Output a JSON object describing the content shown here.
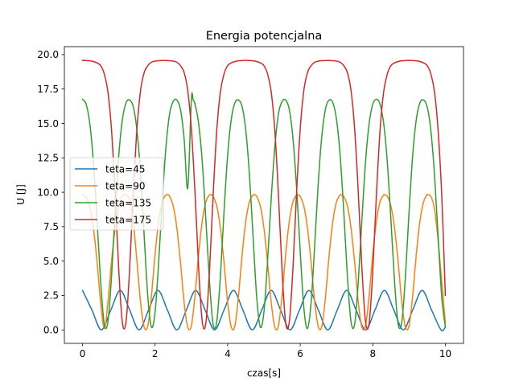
{
  "chart_data": {
    "type": "line",
    "title": "Energia potencjalna",
    "xlabel": "czas[s]",
    "ylabel": "U [J]",
    "xlim": [
      -0.5,
      10.5
    ],
    "ylim": [
      -0.98,
      20.58
    ],
    "xticks": [
      0,
      2,
      4,
      6,
      8,
      10
    ],
    "xtick_labels": [
      "0",
      "2",
      "4",
      "6",
      "8",
      "10"
    ],
    "yticks": [
      0.0,
      2.5,
      5.0,
      7.5,
      10.0,
      12.5,
      15.0,
      17.5,
      20.0
    ],
    "ytick_labels": [
      "0.0",
      "2.5",
      "5.0",
      "7.5",
      "10.0",
      "12.5",
      "15.0",
      "17.5",
      "20.0"
    ],
    "grid": false,
    "legend_position": "center-left",
    "x_range": [
      0,
      10
    ],
    "series": [
      {
        "name": "teta=45",
        "color": "#1f77b4",
        "x": [
          0.0,
          0.26,
          0.52,
          0.78,
          1.04,
          1.3,
          1.56,
          1.82,
          2.08,
          2.34,
          2.6,
          2.86,
          3.12,
          3.38,
          3.64,
          3.9,
          4.16,
          4.42,
          4.68,
          4.94,
          5.2,
          5.46,
          5.72,
          5.98,
          6.24,
          6.5,
          6.76,
          7.02,
          7.28,
          7.54,
          7.8,
          8.06,
          8.32,
          8.58,
          8.84,
          9.1,
          9.36,
          9.62,
          9.88,
          10.0
        ],
        "values": [
          2.87,
          1.44,
          0.0,
          1.44,
          2.87,
          1.44,
          0.0,
          1.44,
          2.87,
          1.44,
          0.0,
          1.44,
          2.87,
          1.44,
          0.0,
          1.44,
          2.87,
          1.44,
          0.0,
          1.44,
          2.87,
          1.44,
          0.0,
          1.44,
          2.87,
          1.44,
          0.0,
          1.44,
          2.87,
          1.44,
          0.0,
          1.44,
          2.87,
          1.44,
          0.0,
          1.44,
          2.87,
          1.44,
          0.0,
          0.2
        ]
      },
      {
        "name": "teta=90",
        "color": "#ff7f0e",
        "x": [
          0.0,
          0.1,
          0.2,
          0.3,
          0.4,
          0.5,
          0.6,
          0.7,
          0.8,
          0.9,
          1.0,
          1.1,
          1.2,
          1.3,
          1.4,
          1.5,
          1.6,
          1.7,
          1.8,
          1.9,
          2.0,
          2.1,
          2.2,
          2.3,
          2.36,
          2.4,
          2.5,
          2.6,
          2.7,
          2.8,
          2.9,
          3.0,
          3.1,
          3.2,
          3.3,
          3.4,
          3.5,
          3.55,
          3.6,
          3.7,
          3.8,
          3.9,
          4.0,
          4.1,
          4.2,
          4.3,
          4.4,
          4.5,
          4.6,
          4.7,
          4.74,
          4.8,
          4.9,
          5.0,
          5.1,
          5.2,
          5.3,
          5.4,
          5.5,
          5.6,
          5.7,
          5.8,
          5.9,
          5.93,
          6.0,
          6.1,
          6.2,
          6.3,
          6.4,
          6.5,
          6.6,
          6.7,
          6.8,
          6.9,
          7.0,
          7.1,
          7.12,
          7.2,
          7.3,
          7.4,
          7.5,
          7.6,
          7.7,
          7.8,
          7.9,
          8.0,
          8.1,
          8.2,
          8.3,
          8.31,
          8.4,
          8.5,
          8.6,
          8.7,
          8.8,
          8.9,
          9.0,
          9.1,
          9.2,
          9.3,
          9.4,
          9.49,
          9.5,
          9.6,
          9.7,
          9.8,
          9.9,
          10.0
        ],
        "values": [
          9.81,
          9.62,
          8.9,
          7.4,
          5.0,
          2.0,
          0.1,
          2.0,
          5.0,
          7.4,
          8.9,
          9.7,
          9.81,
          9.4,
          7.8,
          5.0,
          2.0,
          0.2,
          0.3,
          2.5,
          5.5,
          7.9,
          9.3,
          9.8,
          9.81,
          9.7,
          9.0,
          7.4,
          4.9,
          2.0,
          0.2,
          0.3,
          2.5,
          5.5,
          7.9,
          9.3,
          9.8,
          9.81,
          9.7,
          9.0,
          7.4,
          4.9,
          2.0,
          0.2,
          0.3,
          2.5,
          5.5,
          7.9,
          9.3,
          9.8,
          9.81,
          9.7,
          9.0,
          7.4,
          4.9,
          2.0,
          0.2,
          0.3,
          2.5,
          5.5,
          7.9,
          9.3,
          9.8,
          9.81,
          9.7,
          9.0,
          7.4,
          4.9,
          2.0,
          0.2,
          0.3,
          2.5,
          5.5,
          7.9,
          9.3,
          9.8,
          9.81,
          9.7,
          9.0,
          7.4,
          4.9,
          2.0,
          0.2,
          0.3,
          2.5,
          5.5,
          7.9,
          9.3,
          9.8,
          9.81,
          9.7,
          9.0,
          7.4,
          4.9,
          2.0,
          0.2,
          0.3,
          2.5,
          5.5,
          7.9,
          9.3,
          9.8,
          9.81,
          9.7,
          8.8,
          6.5,
          3.5,
          0.5
        ]
      },
      {
        "name": "teta=135",
        "color": "#2ca02c",
        "x": [
          0.0,
          0.1,
          0.2,
          0.3,
          0.4,
          0.5,
          0.6,
          0.7,
          0.8,
          0.9,
          1.0,
          1.1,
          1.2,
          1.3,
          1.4,
          1.5,
          1.6,
          1.7,
          1.8,
          1.9,
          2.0,
          2.1,
          2.2,
          2.3,
          2.4,
          2.5,
          2.6,
          2.7,
          2.8,
          2.9,
          3.0,
          3.05,
          3.1,
          3.2,
          3.3,
          3.4,
          3.5,
          3.6,
          3.7,
          3.8,
          3.9,
          4.0,
          4.1,
          4.2,
          4.3,
          4.4,
          4.5,
          4.6,
          4.7,
          4.8,
          4.9,
          5.0,
          5.1,
          5.2,
          5.3,
          5.4,
          5.5,
          5.6,
          5.7,
          5.8,
          5.9,
          6.0,
          6.1,
          6.2,
          6.3,
          6.4,
          6.5,
          6.6,
          6.7,
          6.8,
          6.9,
          7.0,
          7.1,
          7.2,
          7.3,
          7.4,
          7.5,
          7.6,
          7.7,
          7.8,
          7.9,
          8.0,
          8.1,
          8.2,
          8.3,
          8.4,
          8.5,
          8.6,
          8.7,
          8.8,
          8.9,
          9.0,
          9.1,
          9.2,
          9.3,
          9.4,
          9.5,
          9.6,
          9.7,
          9.8,
          9.9,
          10.0
        ],
        "values": [
          16.75,
          16.4,
          15.0,
          12.2,
          8.0,
          3.5,
          0.4,
          0.6,
          3.9,
          8.6,
          12.7,
          15.3,
          16.5,
          16.7,
          16.2,
          14.5,
          11.3,
          6.8,
          2.4,
          0.2,
          1.3,
          5.0,
          9.5,
          13.3,
          15.7,
          16.6,
          16.7,
          16.0,
          13.9,
          10.3,
          16.75,
          16.7,
          16.4,
          15.0,
          12.2,
          8.0,
          3.5,
          0.4,
          0.6,
          3.9,
          8.6,
          12.7,
          15.3,
          16.5,
          16.7,
          16.2,
          14.5,
          11.3,
          6.8,
          2.4,
          0.2,
          1.3,
          5.0,
          9.5,
          13.3,
          15.7,
          16.6,
          16.7,
          16.0,
          13.9,
          10.3,
          5.7,
          1.6,
          0.1,
          2.0,
          6.2,
          10.8,
          14.2,
          16.1,
          16.7,
          16.5,
          15.3,
          12.7,
          8.6,
          3.9,
          0.6,
          0.4,
          3.5,
          8.0,
          12.2,
          15.0,
          16.4,
          16.75,
          16.4,
          15.0,
          12.2,
          8.0,
          3.5,
          0.4,
          0.6,
          3.9,
          8.6,
          12.7,
          15.3,
          16.5,
          16.7,
          16.2,
          14.5,
          11.3,
          6.8,
          2.4,
          0.2
        ]
      },
      {
        "name": "teta=175",
        "color": "#d62728",
        "x": [
          0.0,
          0.1,
          0.2,
          0.3,
          0.4,
          0.5,
          0.6,
          0.7,
          0.8,
          0.9,
          1.0,
          1.1,
          1.2,
          1.3,
          1.4,
          1.5,
          1.6,
          1.7,
          1.8,
          1.9,
          2.0,
          2.1,
          2.2,
          2.3,
          2.4,
          2.5,
          2.6,
          2.7,
          2.8,
          2.9,
          3.0,
          3.1,
          3.2,
          3.3,
          3.4,
          3.5,
          3.6,
          3.7,
          3.8,
          3.9,
          4.0,
          4.1,
          4.2,
          4.3,
          4.4,
          4.5,
          4.6,
          4.7,
          4.8,
          4.9,
          5.0,
          5.1,
          5.2,
          5.3,
          5.4,
          5.5,
          5.6,
          5.7,
          5.8,
          5.9,
          6.0,
          6.1,
          6.2,
          6.3,
          6.4,
          6.5,
          6.6,
          6.7,
          6.8,
          6.9,
          7.0,
          7.1,
          7.2,
          7.3,
          7.4,
          7.5,
          7.6,
          7.7,
          7.8,
          7.9,
          8.0,
          8.1,
          8.2,
          8.3,
          8.4,
          8.5,
          8.6,
          8.7,
          8.8,
          8.9,
          9.0,
          9.1,
          9.2,
          9.3,
          9.4,
          9.5,
          9.6,
          9.7,
          9.8,
          9.9,
          10.0
        ],
        "values": [
          19.58,
          19.57,
          19.55,
          19.5,
          19.4,
          19.2,
          18.6,
          17.3,
          14.5,
          9.8,
          4.3,
          0.5,
          0.6,
          4.5,
          10.0,
          14.6,
          17.4,
          18.7,
          19.2,
          19.45,
          19.53,
          19.56,
          19.57,
          19.57,
          19.56,
          19.53,
          19.45,
          19.2,
          18.7,
          17.4,
          14.6,
          10.0,
          4.5,
          0.6,
          0.5,
          4.3,
          9.8,
          14.5,
          17.3,
          18.6,
          19.2,
          19.4,
          19.5,
          19.55,
          19.57,
          19.58,
          19.57,
          19.55,
          19.5,
          19.4,
          19.2,
          18.6,
          17.3,
          14.5,
          9.8,
          4.3,
          0.5,
          0.6,
          4.5,
          10.0,
          14.6,
          17.4,
          18.7,
          19.2,
          19.45,
          19.53,
          19.56,
          19.57,
          19.57,
          19.56,
          19.53,
          19.45,
          19.2,
          18.7,
          17.4,
          14.6,
          10.0,
          4.5,
          0.6,
          0.5,
          4.3,
          9.8,
          14.5,
          17.3,
          18.6,
          19.2,
          19.4,
          19.5,
          19.55,
          19.57,
          19.58,
          19.57,
          19.55,
          19.5,
          19.4,
          19.2,
          18.6,
          17.3,
          14.5,
          9.8,
          2.5
        ]
      }
    ]
  }
}
